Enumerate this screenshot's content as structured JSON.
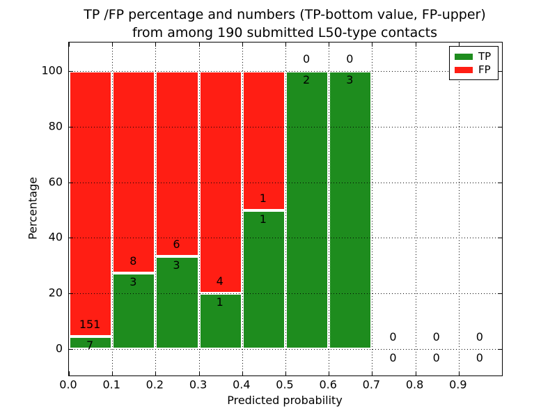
{
  "title": {
    "line1": "TP /FP percentage and numbers (TP-bottom value, FP-upper)",
    "line2": "from among 190 submitted L50-type contacts"
  },
  "axes": {
    "x_label": "Predicted probability",
    "y_label": "Percentage",
    "x_tick_labels": [
      "0.0",
      "0.1",
      "0.2",
      "0.3",
      "0.4",
      "0.5",
      "0.6",
      "0.7",
      "0.8",
      "0.9"
    ],
    "y_tick_labels": [
      "0",
      "20",
      "40",
      "60",
      "80",
      "100"
    ]
  },
  "legend": {
    "items": [
      {
        "label": "TP",
        "color": "#1e8c1e"
      },
      {
        "label": "FP",
        "color": "#ff1e14"
      }
    ]
  },
  "colors": {
    "tp_green": "#1e8c1e",
    "fp_red": "#ff1e14",
    "bar_edge": "#ffffff",
    "grid": "#000000",
    "background": "#ffffff"
  },
  "chart_data": {
    "type": "bar",
    "stacked": true,
    "normalized": "each bar scaled to 100%",
    "title": "TP /FP percentage and numbers (TP-bottom value, FP-upper) from among 190 submitted L50-type contacts",
    "xlabel": "Predicted probability",
    "ylabel": "Percentage",
    "total_contacts": 190,
    "bin_width": 0.1,
    "categories": [
      0.0,
      0.1,
      0.2,
      0.3,
      0.4,
      0.5,
      0.6,
      0.7,
      0.8,
      0.9
    ],
    "xticks": [
      0.0,
      0.1,
      0.2,
      0.3,
      0.4,
      0.5,
      0.6,
      0.7,
      0.8,
      0.9
    ],
    "yticks": [
      0,
      20,
      40,
      60,
      80,
      100
    ],
    "xlim": [
      0.0,
      1.0
    ],
    "ylim": [
      -9.5,
      110.5
    ],
    "grid": "dotted",
    "legend_position": "upper right",
    "series": [
      {
        "name": "TP",
        "color": "#1e8c1e",
        "values": [
          7,
          3,
          3,
          1,
          1,
          2,
          3,
          0,
          0,
          0
        ]
      },
      {
        "name": "FP",
        "color": "#ff1e14",
        "values": [
          151,
          8,
          6,
          4,
          1,
          0,
          0,
          0,
          0,
          0
        ]
      }
    ],
    "tp_pct_of_bin": [
      4.4,
      27.3,
      33.3,
      20.0,
      50.0,
      100.0,
      100.0,
      null,
      null,
      null
    ]
  }
}
